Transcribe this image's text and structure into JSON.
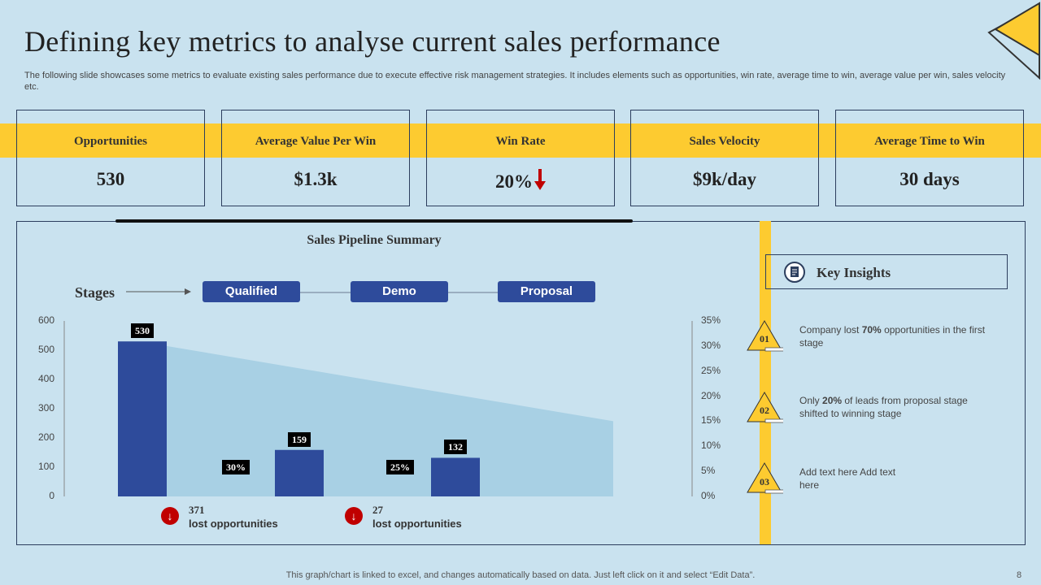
{
  "title": "Defining key metrics to analyse current sales performance",
  "subtitle": "The following slide showcases some metrics to evaluate existing sales performance due to execute effective risk management strategies. It includes elements such as opportunities, win rate, average time to win, average value per win, sales velocity etc.",
  "metrics": [
    {
      "label": "Opportunities",
      "value": "530"
    },
    {
      "label": "Average Value Per Win",
      "value": "$1.3k"
    },
    {
      "label": "Win Rate",
      "value": "20%"
    },
    {
      "label": "Sales Velocity",
      "value": "$9k/day"
    },
    {
      "label": "Average Time to Win",
      "value": "30 days"
    }
  ],
  "colors": {
    "accent_yellow": "#fdcb30",
    "bar_blue": "#2e4b9b",
    "area_blue": "#a8d0e4",
    "down_red": "#c00000"
  },
  "pipeline": {
    "title": "Sales Pipeline Summary",
    "stages_label": "Stages",
    "stages": [
      "Qualified",
      "Demo",
      "Proposal"
    ],
    "lost": [
      {
        "count": "371",
        "text": "lost opportunities"
      },
      {
        "count": "27",
        "text": "lost opportunities"
      }
    ]
  },
  "chart_data": {
    "type": "bar",
    "categories": [
      "Qualified",
      "Demo",
      "Proposal"
    ],
    "values": [
      530,
      159,
      132
    ],
    "conversion_labels": [
      "30%",
      "25%"
    ],
    "ylim": [
      0,
      600
    ],
    "yticks": [
      "0",
      "100",
      "200",
      "300",
      "400",
      "500",
      "600"
    ],
    "secondary_ylim": [
      0,
      35
    ],
    "secondary_yticks": [
      "0%",
      "5%",
      "10%",
      "15%",
      "20%",
      "25%",
      "30%",
      "35%"
    ],
    "area": {
      "start": 30,
      "end": 15
    }
  },
  "insights": {
    "title": "Key Insights",
    "icon": "notepad-icon",
    "items": [
      {
        "num": "01",
        "pre": "Company lost ",
        "bold": "70%",
        "post": " opportunities in the first stage"
      },
      {
        "num": "02",
        "pre": "Only ",
        "bold": "20%",
        "post": " of leads from proposal stage shifted to winning stage"
      },
      {
        "num": "03",
        "pre": "Add text here",
        "bold": "",
        "post": " Add text here"
      }
    ]
  },
  "footer": "This graph/chart is linked to excel, and changes automatically based on data. Just left click on it and select “Edit Data”.",
  "page_number": "8"
}
